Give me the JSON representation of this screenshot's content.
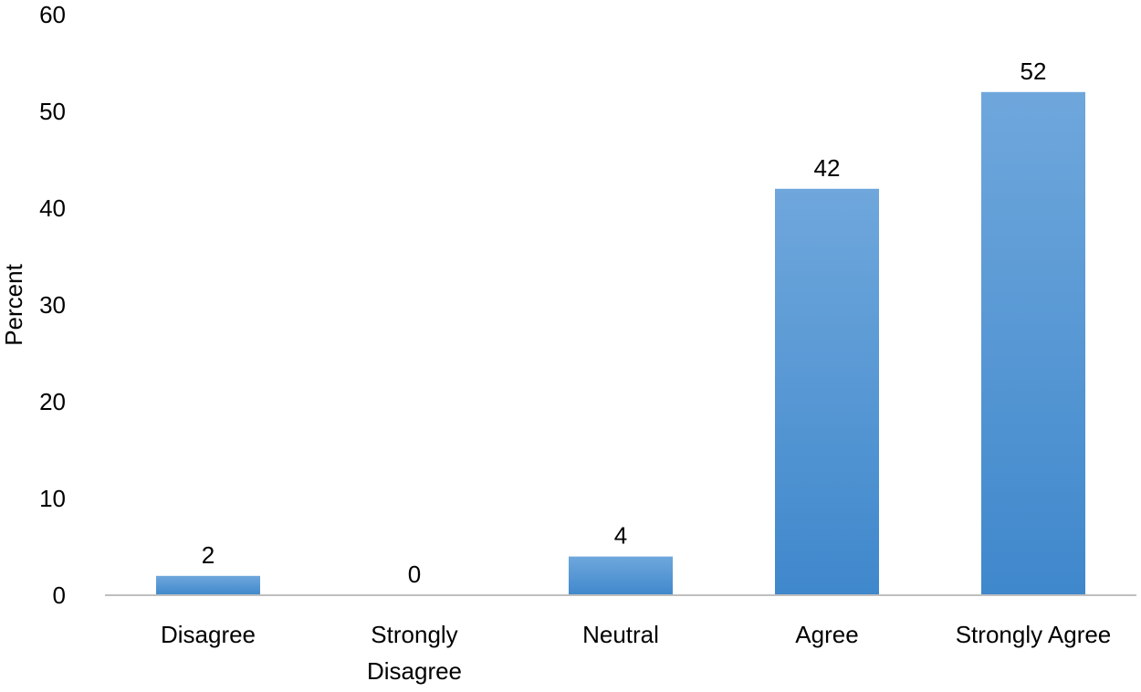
{
  "chart_data": {
    "type": "bar",
    "categories": [
      "Disagree",
      "Strongly Disagree",
      "Neutral",
      "Agree",
      "Strongly Agree"
    ],
    "category_lines": [
      [
        "Disagree"
      ],
      [
        "Strongly",
        "Disagree"
      ],
      [
        "Neutral"
      ],
      [
        "Agree"
      ],
      [
        "Strongly Agree"
      ]
    ],
    "values": [
      2,
      0,
      4,
      42,
      52
    ],
    "data_labels": [
      "2",
      "0",
      "4",
      "42",
      "52"
    ],
    "title": "",
    "xlabel": "",
    "ylabel": "Percent",
    "ylim": [
      0,
      60
    ],
    "yticks": [
      0,
      10,
      20,
      30,
      40,
      50,
      60
    ],
    "grid": false,
    "legend": "none",
    "colors": {
      "bar_top": "#6fa7dc",
      "bar_bottom": "#3f88cc",
      "axis": "#bfbfbf"
    }
  }
}
